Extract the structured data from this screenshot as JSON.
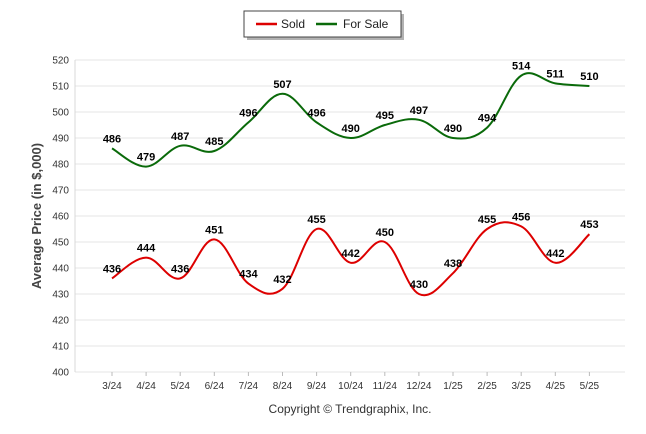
{
  "chart_data": {
    "type": "line",
    "categories": [
      "3/24",
      "4/24",
      "5/24",
      "6/24",
      "7/24",
      "8/24",
      "9/24",
      "10/24",
      "11/24",
      "12/24",
      "1/25",
      "2/25",
      "3/25",
      "4/25",
      "5/25"
    ],
    "series": [
      {
        "name": "Sold",
        "color": "#dd0000",
        "values": [
          436,
          444,
          436,
          451,
          434,
          432,
          455,
          442,
          450,
          430,
          438,
          455,
          456,
          442,
          453
        ]
      },
      {
        "name": "For Sale",
        "color": "#0a6a0a",
        "values": [
          486,
          479,
          487,
          485,
          496,
          507,
          496,
          490,
          495,
          497,
          490,
          494,
          514,
          511,
          510
        ]
      }
    ],
    "ylabel": "Average Price (in $,000)",
    "ylim": [
      400,
      520
    ],
    "yticks": [
      400,
      410,
      420,
      430,
      440,
      450,
      460,
      470,
      480,
      490,
      500,
      510,
      520
    ],
    "grid": true,
    "legend_position": "top-center",
    "data_labels": true
  },
  "footer": {
    "copyright": "Copyright © Trendgraphix, Inc."
  }
}
